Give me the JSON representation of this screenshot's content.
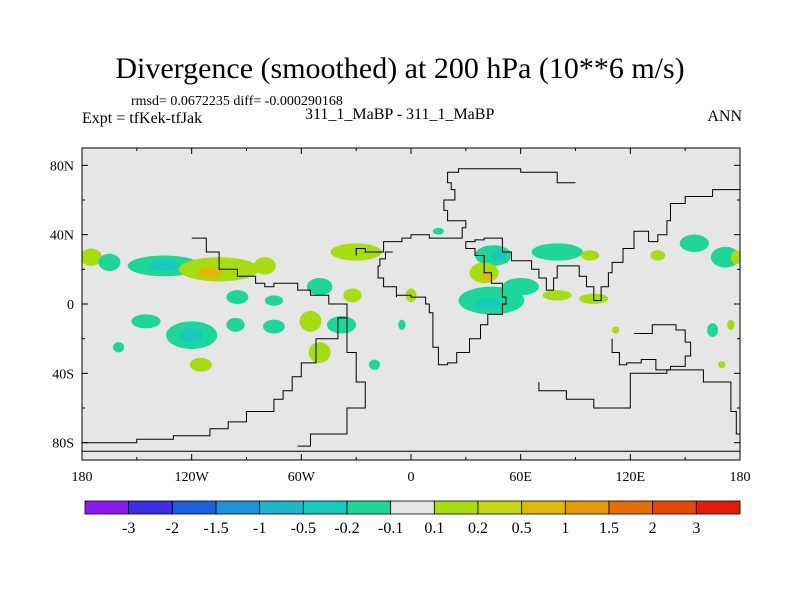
{
  "title": "Divergence (smoothed) at 200 hPa (10**6 m/s)",
  "stats_line": "rmsd= 0.0672235 diff= -0.000290168",
  "expt_label": "Expt = tfKek-tfJak",
  "subtitle": "311_1_MaBP - 311_1_MaBP",
  "season": "ANN",
  "colors": {
    "background_field": "#e6e6e6",
    "frame": "#000000",
    "coastline": "#000000"
  },
  "map": {
    "lon_range": [
      -180,
      180
    ],
    "lat_range": [
      -90,
      90
    ],
    "x_ticks": [
      {
        "value": -180,
        "label": "180"
      },
      {
        "value": -120,
        "label": "120W"
      },
      {
        "value": -60,
        "label": "60W"
      },
      {
        "value": 0,
        "label": "0"
      },
      {
        "value": 60,
        "label": "60E"
      },
      {
        "value": 120,
        "label": "120E"
      },
      {
        "value": 180,
        "label": "180"
      }
    ],
    "y_ticks": [
      {
        "value": 80,
        "label": "80N"
      },
      {
        "value": 40,
        "label": "40N"
      },
      {
        "value": 0,
        "label": "0"
      },
      {
        "value": -40,
        "label": "40S"
      },
      {
        "value": -80,
        "label": "80S"
      }
    ]
  },
  "colorbar": {
    "colors": [
      "#8c1aeb",
      "#3b2ee6",
      "#1c5fde",
      "#1b92d9",
      "#1bb6c9",
      "#19c9c0",
      "#1dd69a",
      "#e6e6e6",
      "#a6dc10",
      "#c4d80c",
      "#e0b80a",
      "#e29b09",
      "#e66d07",
      "#e24a05",
      "#e01d08"
    ],
    "labels": [
      "-3",
      "-2",
      "-1.5",
      "-1",
      "-0.5",
      "-0.2",
      "-0.1",
      "0.1",
      "0.2",
      "0.5",
      "1",
      "1.5",
      "2",
      "3"
    ]
  },
  "blobs": [
    {
      "lon": -135,
      "lat": 22,
      "rlon": 20,
      "rlat": 6,
      "color": "#1dd69a"
    },
    {
      "lon": -135,
      "lat": 22,
      "rlon": 8,
      "rlat": 3,
      "color": "#19c9c0"
    },
    {
      "lon": -105,
      "lat": 20,
      "rlon": 22,
      "rlat": 7,
      "color": "#a6dc10"
    },
    {
      "lon": -110,
      "lat": 18,
      "rlon": 7,
      "rlat": 3,
      "color": "#e0b80a"
    },
    {
      "lon": -175,
      "lat": 27,
      "rlon": 6,
      "rlat": 5,
      "color": "#a6dc10"
    },
    {
      "lon": -165,
      "lat": 24,
      "rlon": 6,
      "rlat": 5,
      "color": "#1dd69a"
    },
    {
      "lon": -95,
      "lat": 4,
      "rlon": 6,
      "rlat": 4,
      "color": "#1dd69a"
    },
    {
      "lon": -75,
      "lat": 2,
      "rlon": 5,
      "rlat": 3,
      "color": "#1dd69a"
    },
    {
      "lon": -80,
      "lat": 22,
      "rlon": 6,
      "rlat": 5,
      "color": "#a6dc10"
    },
    {
      "lon": -50,
      "lat": 10,
      "rlon": 7,
      "rlat": 5,
      "color": "#1dd69a"
    },
    {
      "lon": -30,
      "lat": 30,
      "rlon": 14,
      "rlat": 5,
      "color": "#a6dc10"
    },
    {
      "lon": -32,
      "lat": 5,
      "rlon": 5,
      "rlat": 4,
      "color": "#a6dc10"
    },
    {
      "lon": -55,
      "lat": -10,
      "rlon": 6,
      "rlat": 6,
      "color": "#a6dc10"
    },
    {
      "lon": -38,
      "lat": -12,
      "rlon": 8,
      "rlat": 5,
      "color": "#1dd69a"
    },
    {
      "lon": -120,
      "lat": -18,
      "rlon": 14,
      "rlat": 8,
      "color": "#1dd69a"
    },
    {
      "lon": -120,
      "lat": -18,
      "rlon": 6,
      "rlat": 4,
      "color": "#19c9c0"
    },
    {
      "lon": -145,
      "lat": -10,
      "rlon": 8,
      "rlat": 4,
      "color": "#1dd69a"
    },
    {
      "lon": -96,
      "lat": -12,
      "rlon": 5,
      "rlat": 4,
      "color": "#1dd69a"
    },
    {
      "lon": -75,
      "lat": -13,
      "rlon": 6,
      "rlat": 4,
      "color": "#1dd69a"
    },
    {
      "lon": -115,
      "lat": -35,
      "rlon": 6,
      "rlat": 4,
      "color": "#a6dc10"
    },
    {
      "lon": -160,
      "lat": -25,
      "rlon": 3,
      "rlat": 3,
      "color": "#1dd69a"
    },
    {
      "lon": -50,
      "lat": -28,
      "rlon": 6,
      "rlat": 6,
      "color": "#a6dc10"
    },
    {
      "lon": -20,
      "lat": -35,
      "rlon": 3,
      "rlat": 3,
      "color": "#1dd69a"
    },
    {
      "lon": 0,
      "lat": 5,
      "rlon": 3,
      "rlat": 4,
      "color": "#a6dc10"
    },
    {
      "lon": -5,
      "lat": -12,
      "rlon": 2,
      "rlat": 3,
      "color": "#1dd69a"
    },
    {
      "lon": 15,
      "lat": 42,
      "rlon": 3,
      "rlat": 2,
      "color": "#1dd69a"
    },
    {
      "lon": 45,
      "lat": 28,
      "rlon": 10,
      "rlat": 6,
      "color": "#1dd69a"
    },
    {
      "lon": 48,
      "lat": 28,
      "rlon": 4,
      "rlat": 3,
      "color": "#19c9c0"
    },
    {
      "lon": 40,
      "lat": 18,
      "rlon": 8,
      "rlat": 6,
      "color": "#a6dc10"
    },
    {
      "lon": 42,
      "lat": 16,
      "rlon": 3,
      "rlat": 3,
      "color": "#e0b80a"
    },
    {
      "lon": 80,
      "lat": 30,
      "rlon": 14,
      "rlat": 5,
      "color": "#1dd69a"
    },
    {
      "lon": 98,
      "lat": 28,
      "rlon": 5,
      "rlat": 3,
      "color": "#a6dc10"
    },
    {
      "lon": 44,
      "lat": 2,
      "rlon": 18,
      "rlat": 8,
      "color": "#1dd69a"
    },
    {
      "lon": 42,
      "lat": 0,
      "rlon": 7,
      "rlat": 3,
      "color": "#19c9c0"
    },
    {
      "lon": 60,
      "lat": 10,
      "rlon": 10,
      "rlat": 5,
      "color": "#1dd69a"
    },
    {
      "lon": 80,
      "lat": 5,
      "rlon": 8,
      "rlat": 3,
      "color": "#a6dc10"
    },
    {
      "lon": 100,
      "lat": 3,
      "rlon": 8,
      "rlat": 3,
      "color": "#a6dc10"
    },
    {
      "lon": 135,
      "lat": 28,
      "rlon": 4,
      "rlat": 3,
      "color": "#a6dc10"
    },
    {
      "lon": 155,
      "lat": 35,
      "rlon": 8,
      "rlat": 5,
      "color": "#1dd69a"
    },
    {
      "lon": 172,
      "lat": 27,
      "rlon": 8,
      "rlat": 6,
      "color": "#1dd69a"
    },
    {
      "lon": 178,
      "lat": 27,
      "rlon": 3,
      "rlat": 4,
      "color": "#a6dc10"
    },
    {
      "lon": 165,
      "lat": -15,
      "rlon": 3,
      "rlat": 4,
      "color": "#1dd69a"
    },
    {
      "lon": 175,
      "lat": -12,
      "rlon": 2,
      "rlat": 3,
      "color": "#a6dc10"
    },
    {
      "lon": 112,
      "lat": -15,
      "rlon": 2,
      "rlat": 2,
      "color": "#a6dc10"
    },
    {
      "lon": 170,
      "lat": -35,
      "rlon": 2,
      "rlat": 2,
      "color": "#a6dc10"
    }
  ],
  "coastlines": [
    [
      [
        -180,
        -80
      ],
      [
        -150,
        -80
      ],
      [
        -130,
        -78
      ],
      [
        -110,
        -76
      ],
      [
        -100,
        -72
      ],
      [
        -90,
        -68
      ],
      [
        -75,
        -62
      ],
      [
        -70,
        -55
      ],
      [
        -65,
        -50
      ],
      [
        -60,
        -42
      ],
      [
        -52,
        -34
      ],
      [
        -40,
        -20
      ],
      [
        -35,
        -8
      ],
      [
        -45,
        0
      ],
      [
        -55,
        5
      ],
      [
        -62,
        8
      ],
      [
        -75,
        12
      ],
      [
        -80,
        10
      ],
      [
        -85,
        12
      ],
      [
        -95,
        16
      ],
      [
        -105,
        20
      ],
      [
        -112,
        30
      ],
      [
        -120,
        38
      ]
    ],
    [
      [
        -35,
        -8
      ],
      [
        -30,
        -28
      ],
      [
        -25,
        -45
      ],
      [
        -35,
        -60
      ],
      [
        -55,
        -75
      ],
      [
        -62,
        -82
      ]
    ],
    [
      [
        -30,
        28
      ],
      [
        -25,
        32
      ],
      [
        -15,
        30
      ],
      [
        -10,
        36
      ],
      [
        -5,
        36
      ],
      [
        0,
        38
      ],
      [
        10,
        40
      ],
      [
        20,
        38
      ],
      [
        28,
        38
      ],
      [
        30,
        44
      ],
      [
        20,
        48
      ],
      [
        18,
        54
      ],
      [
        24,
        60
      ],
      [
        22,
        66
      ],
      [
        20,
        70
      ],
      [
        26,
        76
      ],
      [
        40,
        78
      ],
      [
        60,
        78
      ],
      [
        80,
        76
      ],
      [
        90,
        70
      ]
    ],
    [
      [
        -8,
        4
      ],
      [
        0,
        5
      ],
      [
        8,
        4
      ],
      [
        10,
        0
      ],
      [
        12,
        -5
      ],
      [
        12,
        -15
      ],
      [
        15,
        -25
      ],
      [
        20,
        -35
      ],
      [
        25,
        -34
      ],
      [
        32,
        -28
      ],
      [
        38,
        -20
      ],
      [
        42,
        -12
      ],
      [
        50,
        -6
      ],
      [
        52,
        0
      ],
      [
        50,
        4
      ],
      [
        44,
        12
      ],
      [
        40,
        18
      ],
      [
        35,
        28
      ],
      [
        30,
        32
      ],
      [
        35,
        36
      ],
      [
        40,
        37
      ],
      [
        50,
        38
      ],
      [
        55,
        30
      ],
      [
        60,
        25
      ],
      [
        66,
        25
      ],
      [
        70,
        20
      ],
      [
        74,
        15
      ],
      [
        78,
        8
      ],
      [
        80,
        15
      ],
      [
        88,
        22
      ],
      [
        92,
        22
      ],
      [
        96,
        16
      ],
      [
        100,
        10
      ],
      [
        104,
        2
      ],
      [
        108,
        10
      ],
      [
        110,
        18
      ],
      [
        116,
        24
      ],
      [
        122,
        32
      ],
      [
        122,
        40
      ],
      [
        130,
        42
      ],
      [
        135,
        36
      ],
      [
        140,
        40
      ],
      [
        142,
        48
      ],
      [
        150,
        58
      ],
      [
        165,
        62
      ],
      [
        180,
        66
      ]
    ],
    [
      [
        -8,
        4
      ],
      [
        -15,
        10
      ],
      [
        -18,
        15
      ],
      [
        -17,
        22
      ],
      [
        -14,
        26
      ],
      [
        -10,
        30
      ]
    ],
    [
      [
        110,
        -20
      ],
      [
        114,
        -28
      ],
      [
        118,
        -35
      ],
      [
        126,
        -34
      ],
      [
        134,
        -32
      ],
      [
        142,
        -38
      ],
      [
        150,
        -36
      ],
      [
        153,
        -30
      ],
      [
        150,
        -22
      ],
      [
        145,
        -15
      ],
      [
        140,
        -12
      ],
      [
        132,
        -12
      ],
      [
        122,
        -17
      ]
    ],
    [
      [
        70,
        -45
      ],
      [
        85,
        -50
      ],
      [
        100,
        -55
      ],
      [
        120,
        -60
      ],
      [
        140,
        -40
      ],
      [
        160,
        -38
      ],
      [
        175,
        -45
      ],
      [
        178,
        -62
      ],
      [
        180,
        -75
      ]
    ],
    [
      [
        -180,
        -85
      ],
      [
        180,
        -85
      ]
    ]
  ]
}
